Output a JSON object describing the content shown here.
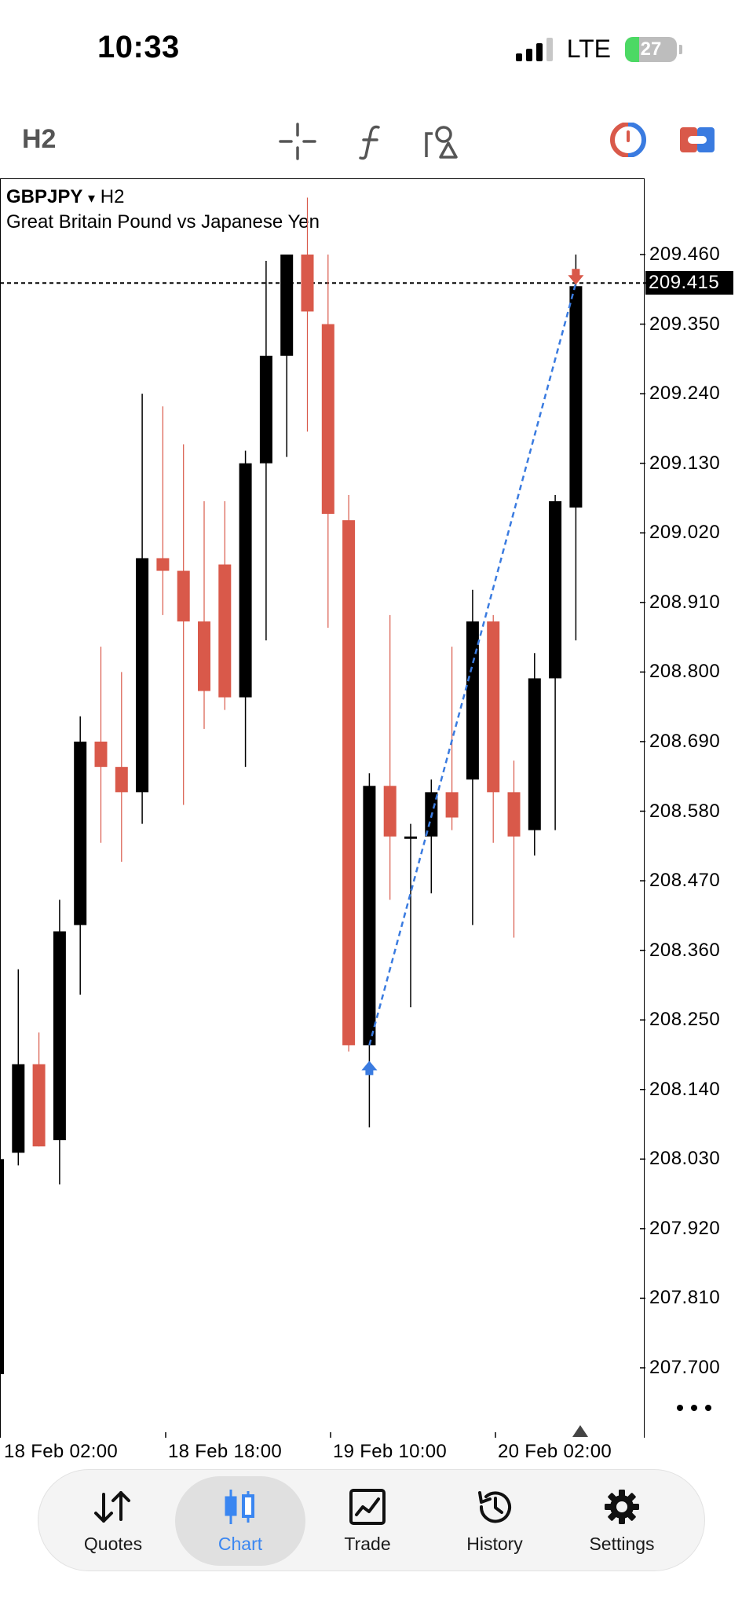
{
  "status_bar": {
    "time": "10:33",
    "network": "LTE",
    "battery": "27",
    "battery_level": 0.27
  },
  "toolbar": {
    "timeframe": "H2",
    "icons": [
      "crosshair-icon",
      "function-icon",
      "objects-icon",
      "indicator-circle-icon",
      "timeframe-toggle-icon"
    ]
  },
  "chart": {
    "symbol": "GBPJPY",
    "symbol_arrow": "▾",
    "timeframe": "H2",
    "description": "Great Britain Pound vs Japanese Yen",
    "current_price": "209.415",
    "price_labels": [
      "209.460",
      "209.350",
      "209.240",
      "209.130",
      "209.020",
      "208.910",
      "208.800",
      "208.690",
      "208.580",
      "208.470",
      "208.360",
      "208.250",
      "208.140",
      "208.030",
      "207.920",
      "207.810",
      "207.700"
    ],
    "time_labels": [
      "18 Feb 02:00",
      "18 Feb 18:00",
      "19 Feb 10:00",
      "20 Feb 02:00"
    ],
    "colors": {
      "bull": "#000000",
      "bear": "#d9594a",
      "trade_line": "#3a7be0",
      "buy_arrow": "#3a7be0",
      "sell_arrow": "#d9594a"
    }
  },
  "chart_data": {
    "type": "candlestick",
    "ylim": [
      207.62,
      209.61
    ],
    "current_price": 209.415,
    "candles": [
      {
        "o": 207.69,
        "h": 208.03,
        "l": 207.62,
        "c": 208.03
      },
      {
        "o": 208.04,
        "h": 208.33,
        "l": 208.02,
        "c": 208.18
      },
      {
        "o": 208.18,
        "h": 208.23,
        "l": 208.05,
        "c": 208.05
      },
      {
        "o": 208.06,
        "h": 208.44,
        "l": 207.99,
        "c": 208.39
      },
      {
        "o": 208.4,
        "h": 208.73,
        "l": 208.29,
        "c": 208.69
      },
      {
        "o": 208.69,
        "h": 208.84,
        "l": 208.53,
        "c": 208.65
      },
      {
        "o": 208.65,
        "h": 208.8,
        "l": 208.5,
        "c": 208.61
      },
      {
        "o": 208.61,
        "h": 209.24,
        "l": 208.56,
        "c": 208.98
      },
      {
        "o": 208.98,
        "h": 209.22,
        "l": 208.89,
        "c": 208.96
      },
      {
        "o": 208.96,
        "h": 209.16,
        "l": 208.59,
        "c": 208.88
      },
      {
        "o": 208.88,
        "h": 209.07,
        "l": 208.71,
        "c": 208.77
      },
      {
        "o": 208.97,
        "h": 209.07,
        "l": 208.74,
        "c": 208.76
      },
      {
        "o": 208.76,
        "h": 209.15,
        "l": 208.65,
        "c": 209.13
      },
      {
        "o": 209.13,
        "h": 209.45,
        "l": 208.85,
        "c": 209.3
      },
      {
        "o": 209.3,
        "h": 209.46,
        "l": 209.14,
        "c": 209.46
      },
      {
        "o": 209.46,
        "h": 209.55,
        "l": 209.18,
        "c": 209.37
      },
      {
        "o": 209.35,
        "h": 209.46,
        "l": 208.87,
        "c": 209.05
      },
      {
        "o": 209.04,
        "h": 209.08,
        "l": 208.2,
        "c": 208.21
      },
      {
        "o": 208.21,
        "h": 208.64,
        "l": 208.08,
        "c": 208.62
      },
      {
        "o": 208.62,
        "h": 208.89,
        "l": 208.44,
        "c": 208.54
      },
      {
        "o": 208.54,
        "h": 208.56,
        "l": 208.27,
        "c": 208.54
      },
      {
        "o": 208.54,
        "h": 208.63,
        "l": 208.45,
        "c": 208.61
      },
      {
        "o": 208.61,
        "h": 208.84,
        "l": 208.55,
        "c": 208.57
      },
      {
        "o": 208.63,
        "h": 208.93,
        "l": 208.4,
        "c": 208.88
      },
      {
        "o": 208.88,
        "h": 208.89,
        "l": 208.53,
        "c": 208.61
      },
      {
        "o": 208.61,
        "h": 208.66,
        "l": 208.38,
        "c": 208.54
      },
      {
        "o": 208.55,
        "h": 208.83,
        "l": 208.51,
        "c": 208.79
      },
      {
        "o": 208.79,
        "h": 209.08,
        "l": 208.55,
        "c": 209.07
      },
      {
        "o": 209.06,
        "h": 209.46,
        "l": 208.85,
        "c": 209.41
      }
    ],
    "buy_marker": {
      "candle": 18,
      "price": 208.21
    },
    "sell_marker": {
      "candle": 28,
      "price": 209.415
    }
  },
  "tabs": [
    {
      "label": "Quotes",
      "icon": "quotes-icon"
    },
    {
      "label": "Chart",
      "icon": "chart-icon",
      "active": true
    },
    {
      "label": "Trade",
      "icon": "trade-icon"
    },
    {
      "label": "History",
      "icon": "history-icon"
    },
    {
      "label": "Settings",
      "icon": "settings-icon"
    }
  ]
}
